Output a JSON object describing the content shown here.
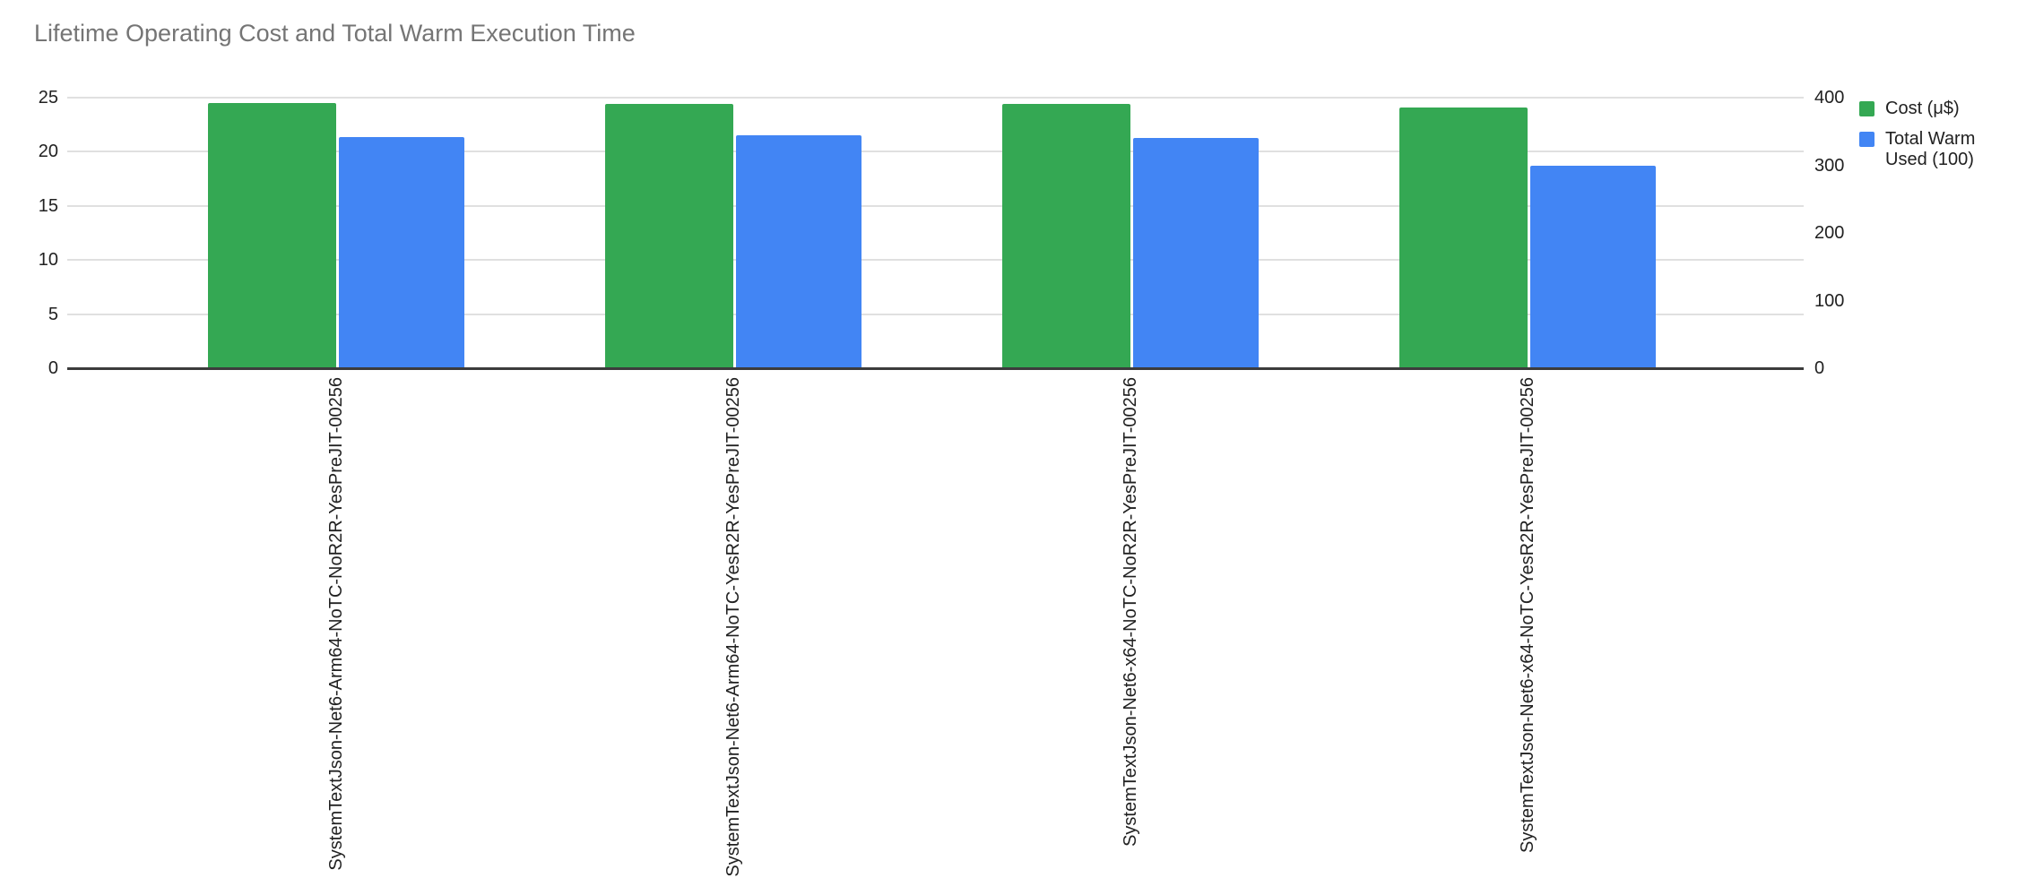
{
  "chart_data": {
    "type": "bar",
    "title": "Lifetime Operating Cost and Total Warm Execution Time",
    "title_color": "#757575",
    "categories": [
      "SystemTextJson-Net6-Arm64-NoTC-NoR2R-YesPreJIT-00256",
      "SystemTextJson-Net6-Arm64-NoTC-YesR2R-YesPreJIT-00256",
      "SystemTextJson-Net6-x64-NoTC-NoR2R-YesPreJIT-00256",
      "SystemTextJson-Net6-x64-NoTC-YesR2R-YesPreJIT-00256"
    ],
    "series": [
      {
        "name": "Cost (μ$)",
        "color": "#34A853",
        "axis": "left",
        "values": [
          24.5,
          24.4,
          24.4,
          24.1
        ]
      },
      {
        "name": "Total Warm Used (100)",
        "color": "#4285F4",
        "axis": "right",
        "values": [
          342,
          344,
          340,
          299
        ]
      }
    ],
    "axes": {
      "left": {
        "min": 0,
        "max": 25,
        "ticks": [
          0,
          5,
          10,
          15,
          20,
          25
        ]
      },
      "right": {
        "min": 0,
        "max": 400,
        "ticks": [
          0,
          100,
          200,
          300,
          400
        ]
      }
    },
    "grid": {
      "horizontal": true,
      "line_color": "#e0e0e0",
      "baseline_color": "#3c3c3c"
    },
    "legend": {
      "position": "right"
    },
    "text_color": "#212121"
  }
}
